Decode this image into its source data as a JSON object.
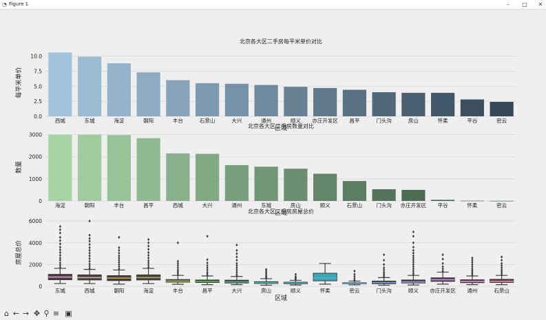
{
  "window": {
    "title": "Figure 1",
    "icon": "figure-icon",
    "controls": {
      "minimize": "–",
      "maximize": "□",
      "close": "✕"
    }
  },
  "toolbar": [
    {
      "name": "home-icon",
      "glyph": "⌂"
    },
    {
      "name": "back-arrow-icon",
      "glyph": "←"
    },
    {
      "name": "forward-arrow-icon",
      "glyph": "→"
    },
    {
      "name": "pan-icon",
      "glyph": "✥"
    },
    {
      "name": "zoom-icon",
      "glyph": "⚲"
    },
    {
      "name": "configure-subplots-icon",
      "glyph": "≡"
    },
    {
      "name": "save-icon",
      "glyph": "▣"
    }
  ],
  "chart_data": [
    {
      "type": "bar",
      "title": "北京各大区二手房每平米单价对比",
      "xlabel": "区域",
      "ylabel": "每平米单价",
      "categories": [
        "西城",
        "东城",
        "海淀",
        "朝阳",
        "丰台",
        "石景山",
        "大兴",
        "通州",
        "顺义",
        "亦庄开发区",
        "昌平",
        "门头沟",
        "房山",
        "怀柔",
        "平谷",
        "密云"
      ],
      "values": [
        10.6,
        9.9,
        8.8,
        7.3,
        6.0,
        5.5,
        5.4,
        5.2,
        4.9,
        4.7,
        4.4,
        4.0,
        3.9,
        3.9,
        2.8,
        2.4
      ],
      "yticks": [
        "0.0",
        "2.5",
        "5.0",
        "7.5",
        "10.0"
      ],
      "ylim": [
        0,
        11.2
      ],
      "palette": "Blues_d"
    },
    {
      "type": "bar",
      "title": "北京各大区二手房数量对比",
      "xlabel": "区域",
      "ylabel": "数量",
      "categories": [
        "海淀",
        "朝阳",
        "丰台",
        "昌平",
        "西城",
        "大兴",
        "通州",
        "东城",
        "房山",
        "顺义",
        "石景山",
        "门头沟",
        "亦庄开发区",
        "平谷",
        "怀柔",
        "密云"
      ],
      "values": [
        3000,
        3000,
        2980,
        2840,
        2150,
        2130,
        1620,
        1550,
        1460,
        1230,
        900,
        530,
        500,
        50,
        10,
        5
      ],
      "yticks": [
        "0",
        "1000",
        "2000",
        "3000"
      ],
      "ylim": [
        0,
        3050
      ],
      "palette": "Greens_d"
    },
    {
      "type": "box",
      "title": "北京各大区二手房房屋总价",
      "xlabel": "区域",
      "ylabel": "房屋总价",
      "categories": [
        "东城",
        "西城",
        "朝阳",
        "海淀",
        "丰台",
        "昌平",
        "大兴",
        "房山",
        "顺义",
        "怀柔",
        "密云",
        "门头沟",
        "顺义",
        "亦庄开发区",
        "通州",
        "石景山"
      ],
      "yticks": [
        "0",
        "2000",
        "4000",
        "6000"
      ],
      "ylim": [
        0,
        6200
      ],
      "boxes": [
        {
          "q1": 600,
          "median": 850,
          "q3": 1100,
          "wlo": 250,
          "whi": 1650,
          "fliers": [
            1750,
            1950,
            2150,
            2400,
            2600,
            2850,
            3100,
            3350,
            3600,
            3900,
            4200,
            4500,
            4900,
            5200,
            5500
          ],
          "color": "#e08cc0"
        },
        {
          "q1": 580,
          "median": 800,
          "q3": 1050,
          "wlo": 250,
          "whi": 1550,
          "fliers": [
            1650,
            1850,
            2050,
            2300,
            2550,
            2800,
            3050,
            3300,
            3550,
            3850,
            4150,
            4400,
            4700,
            6000
          ],
          "color": "#e2a09c"
        },
        {
          "q1": 520,
          "median": 750,
          "q3": 980,
          "wlo": 200,
          "whi": 1500,
          "fliers": [
            1600,
            1800,
            2000,
            2200,
            2400,
            2600,
            2800,
            3050,
            3300,
            3550,
            4500
          ],
          "color": "#c89a58"
        },
        {
          "q1": 580,
          "median": 800,
          "q3": 1050,
          "wlo": 250,
          "whi": 1650,
          "fliers": [
            1750,
            1950,
            2150,
            2350,
            2600,
            2850,
            3100,
            3400,
            3700,
            4000,
            4300
          ],
          "color": "#b8ac46"
        },
        {
          "q1": 380,
          "median": 480,
          "q3": 620,
          "wlo": 180,
          "whi": 1000,
          "fliers": [
            1050,
            1200,
            1350,
            1500,
            1700,
            1900,
            2100,
            2300,
            4000
          ],
          "color": "#96b04a"
        },
        {
          "q1": 350,
          "median": 450,
          "q3": 580,
          "wlo": 150,
          "whi": 950,
          "fliers": [
            1000,
            1150,
            1300,
            1500,
            1700,
            1900,
            2150,
            2450,
            4600
          ],
          "color": "#5eb45a"
        },
        {
          "q1": 300,
          "median": 400,
          "q3": 560,
          "wlo": 150,
          "whi": 900,
          "fliers": [
            950,
            1100,
            1300,
            1500,
            1700,
            1900,
            2100,
            2400,
            2700,
            3000,
            3300,
            3800
          ],
          "color": "#48b48c"
        },
        {
          "q1": 250,
          "median": 320,
          "q3": 420,
          "wlo": 100,
          "whi": 700,
          "fliers": [
            750,
            850,
            950,
            1100,
            1250,
            1400,
            1550
          ],
          "color": "#46b2a8"
        },
        {
          "q1": 230,
          "median": 300,
          "q3": 380,
          "wlo": 120,
          "whi": 550,
          "fliers": [
            600,
            700,
            800,
            900,
            1100
          ],
          "color": "#48b0c0"
        },
        {
          "q1": 500,
          "median": 750,
          "q3": 1200,
          "wlo": 200,
          "whi": 2100,
          "fliers": [],
          "color": "#4ab0cc"
        },
        {
          "q1": 220,
          "median": 270,
          "q3": 330,
          "wlo": 130,
          "whi": 480,
          "fliers": [
            550,
            700,
            900,
            1100,
            1400
          ],
          "color": "#5aa8d8"
        },
        {
          "q1": 230,
          "median": 330,
          "q3": 480,
          "wlo": 100,
          "whi": 800,
          "fliers": [
            850,
            1000,
            1150,
            1300,
            1500,
            1700,
            2000,
            2400,
            2900
          ],
          "color": "#7ca0de"
        },
        {
          "q1": 300,
          "median": 400,
          "q3": 580,
          "wlo": 120,
          "whi": 1000,
          "fliers": [
            1050,
            1200,
            1400,
            1600,
            1800,
            2000,
            2200,
            2400,
            2600,
            2800,
            3050,
            3300,
            3600,
            4000,
            4600,
            5000
          ],
          "color": "#a694de"
        },
        {
          "q1": 450,
          "median": 600,
          "q3": 780,
          "wlo": 200,
          "whi": 1300,
          "fliers": [
            1400,
            1600,
            1800,
            2100,
            2500,
            2900
          ],
          "color": "#c890dc"
        },
        {
          "q1": 330,
          "median": 450,
          "q3": 600,
          "wlo": 150,
          "whi": 950,
          "fliers": [
            1000,
            1150,
            1300,
            1450,
            1600,
            1800,
            2000,
            2200,
            2400,
            2600
          ],
          "color": "#de8cd0"
        },
        {
          "q1": 350,
          "median": 460,
          "q3": 640,
          "wlo": 150,
          "whi": 1000,
          "fliers": [
            1050,
            1200,
            1350,
            1500,
            1700,
            1900,
            2100,
            2400,
            2700
          ],
          "color": "#e88ab4"
        }
      ]
    }
  ]
}
